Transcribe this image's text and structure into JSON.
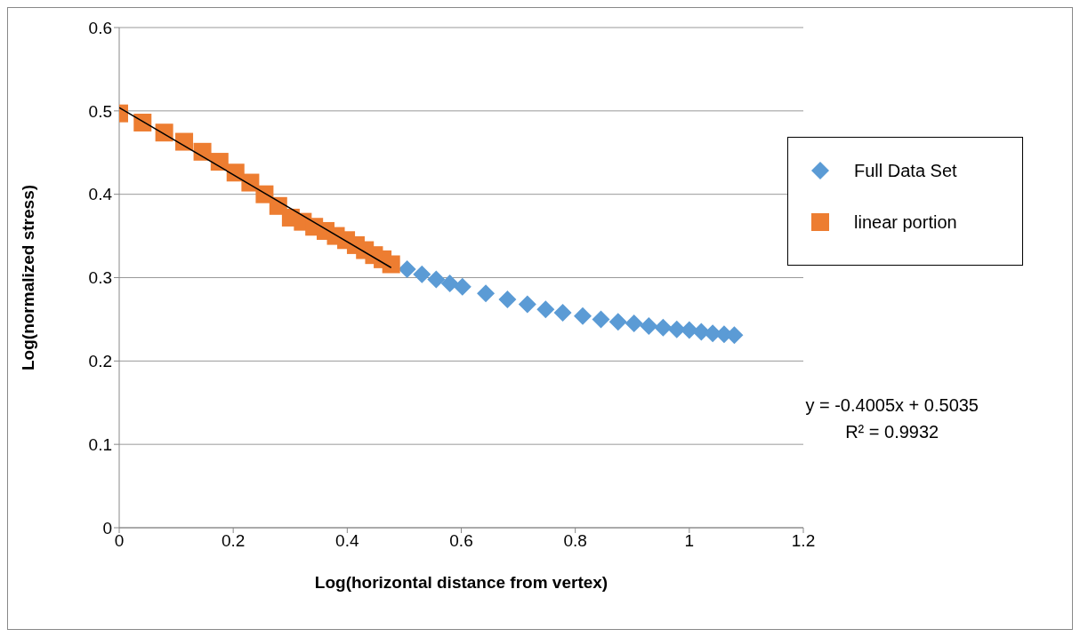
{
  "chart_data": {
    "type": "scatter",
    "xlabel": "Log(horizontal distance from vertex)",
    "ylabel": "Log(normalized stress)",
    "xlim": [
      0,
      1.2
    ],
    "xticks": [
      0,
      0.2,
      0.4,
      0.6,
      0.8,
      1,
      1.2
    ],
    "ylim": [
      0,
      0.6
    ],
    "yticks": [
      0,
      0.1,
      0.2,
      0.3,
      0.4,
      0.5,
      0.6
    ],
    "grid": "y",
    "legend": "top right",
    "series": [
      {
        "name": "Full Data Set",
        "color": "#5b9bd5",
        "marker": "diamond",
        "x": [
          0.505,
          0.531,
          0.556,
          0.58,
          0.602,
          0.643,
          0.681,
          0.716,
          0.748,
          0.778,
          0.813,
          0.845,
          0.875,
          0.903,
          0.929,
          0.954,
          0.978,
          1.0,
          1.021,
          1.041,
          1.061,
          1.079
        ],
        "values": [
          0.31,
          0.304,
          0.298,
          0.293,
          0.289,
          0.281,
          0.274,
          0.268,
          0.262,
          0.258,
          0.254,
          0.25,
          0.247,
          0.245,
          0.242,
          0.24,
          0.238,
          0.237,
          0.235,
          0.233,
          0.232,
          0.231
        ]
      },
      {
        "name": "linear portion",
        "color": "#ed7d31",
        "marker": "square",
        "x": [
          0,
          0.041,
          0.079,
          0.114,
          0.146,
          0.176,
          0.204,
          0.23,
          0.255,
          0.279,
          0.301,
          0.322,
          0.342,
          0.362,
          0.38,
          0.398,
          0.415,
          0.431,
          0.447,
          0.462,
          0.477
        ],
        "values": [
          0.497,
          0.486,
          0.474,
          0.463,
          0.451,
          0.439,
          0.426,
          0.414,
          0.4,
          0.386,
          0.372,
          0.367,
          0.361,
          0.356,
          0.35,
          0.345,
          0.339,
          0.333,
          0.327,
          0.322,
          0.316
        ]
      },
      {
        "type": "line",
        "color": "#000000",
        "marker": "none",
        "x": [
          0,
          0.477
        ],
        "values": [
          0.504,
          0.312
        ]
      }
    ],
    "annotations": [
      "y = -0.4005x + 0.5035",
      "R² = 0.9932"
    ]
  }
}
